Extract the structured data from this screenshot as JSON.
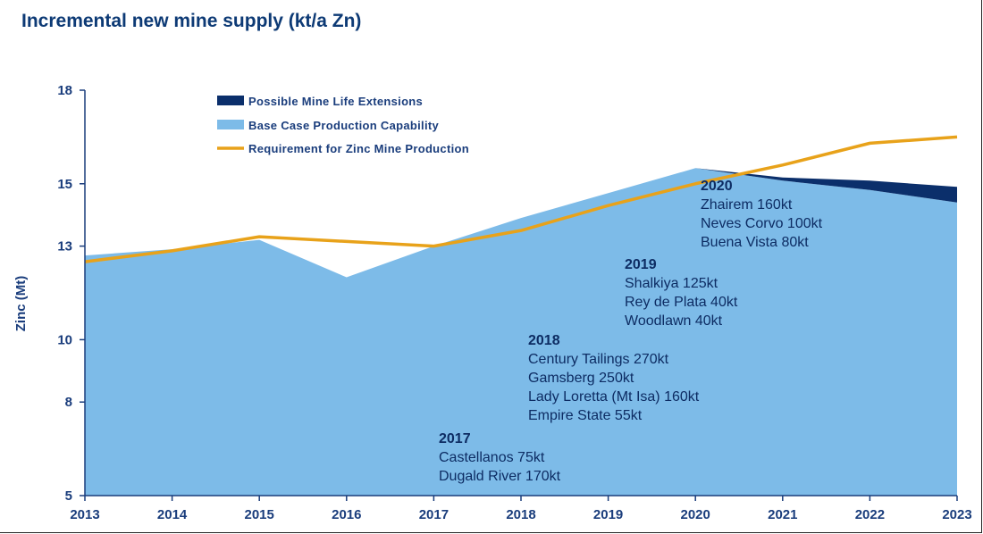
{
  "title": "Incremental new mine supply (kt/a Zn)",
  "chart_data": {
    "type": "area",
    "title": "Incremental new mine supply (kt/a Zn)",
    "xlabel": "",
    "ylabel": "Zinc (Mt)",
    "x": [
      "2013",
      "2014",
      "2015",
      "2016",
      "2017",
      "2018",
      "2019",
      "2020",
      "2021",
      "2022",
      "2023"
    ],
    "ylim": [
      5,
      18
    ],
    "yticks": [
      5,
      8,
      10,
      13,
      15,
      18
    ],
    "series": [
      {
        "name": "Base Case Production Capability",
        "kind": "area",
        "color": "#7dbbe8",
        "values": [
          12.7,
          12.9,
          13.2,
          12.0,
          13.0,
          13.9,
          14.7,
          15.5,
          15.1,
          14.8,
          14.4
        ]
      },
      {
        "name": "Possible Mine Life Extensions",
        "kind": "stacked-area",
        "color": "#0b2f6b",
        "values": [
          0,
          0,
          0,
          0,
          0,
          0,
          0,
          0,
          0.1,
          0.3,
          0.5
        ]
      },
      {
        "name": "Requirement for Zinc Mine Production",
        "kind": "line",
        "color": "#e8a21a",
        "values": [
          12.5,
          12.85,
          13.3,
          13.15,
          13.0,
          13.5,
          14.3,
          15.0,
          15.6,
          16.3,
          16.5
        ]
      }
    ],
    "legend": {
      "position": "top-left",
      "items": [
        {
          "label": "Possible Mine Life Extensions",
          "color": "#0b2f6b",
          "marker": "bar"
        },
        {
          "label": "Base Case Production Capability",
          "color": "#7dbbe8",
          "marker": "bar"
        },
        {
          "label": "Requirement for Zinc Mine Production",
          "color": "#e8a21a",
          "marker": "line"
        }
      ]
    },
    "annotations": [
      {
        "year": "2017",
        "lines": [
          "Castellanos 75kt",
          "Dugald River 170kt"
        ]
      },
      {
        "year": "2018",
        "lines": [
          "Century Tailings 270kt",
          "Gamsberg 250kt",
          "Lady Loretta (Mt Isa) 160kt",
          "Empire State 55kt"
        ]
      },
      {
        "year": "2019",
        "lines": [
          "Shalkiya 125kt",
          "Rey de Plata 40kt",
          "Woodlawn 40kt"
        ]
      },
      {
        "year": "2020",
        "lines": [
          "Zhairem 160kt",
          "Neves Corvo 100kt",
          "Buena Vista 80kt"
        ]
      }
    ],
    "grid": false
  }
}
